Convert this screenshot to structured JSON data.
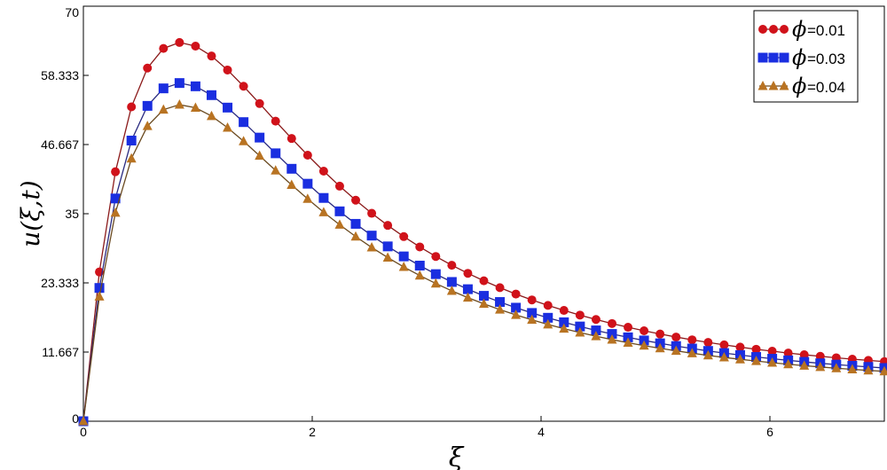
{
  "chart_data": {
    "type": "line",
    "title": "",
    "xlabel": "ξ",
    "ylabel": "u(ξ,t)",
    "xlim": [
      0,
      7
    ],
    "ylim": [
      0,
      70
    ],
    "x_ticks": [
      "0",
      "2",
      "4",
      "6"
    ],
    "y_ticks": [
      "0",
      "11.667",
      "23.333",
      "35",
      "46.667",
      "58.333",
      "70"
    ],
    "grid": false,
    "legend_position": "top-right",
    "legend_symbol": "ϕ",
    "x": [
      0,
      0.14,
      0.28,
      0.42,
      0.56,
      0.7,
      0.84,
      0.98,
      1.12,
      1.26,
      1.4,
      1.54,
      1.68,
      1.82,
      1.96,
      2.1,
      2.24,
      2.38,
      2.52,
      2.66,
      2.8,
      2.94,
      3.08,
      3.22,
      3.36,
      3.5,
      3.64,
      3.78,
      3.92,
      4.06,
      4.2,
      4.34,
      4.48,
      4.62,
      4.76,
      4.9,
      5.04,
      5.18,
      5.32,
      5.46,
      5.6,
      5.74,
      5.88,
      6.02,
      6.16,
      6.3,
      6.44,
      6.58,
      6.72,
      6.86,
      7.0
    ],
    "series": [
      {
        "name": "=0.01",
        "color": "#d0121a",
        "line_color": "#8b1a1a",
        "marker": "circle",
        "values": [
          0.0,
          25.18,
          42.08,
          53.02,
          59.57,
          62.88,
          63.88,
          63.27,
          61.6,
          59.24,
          56.5,
          53.58,
          50.61,
          47.69,
          44.87,
          42.18,
          39.65,
          37.28,
          35.07,
          33.03,
          31.14,
          29.4,
          27.79,
          26.31,
          24.95,
          23.69,
          22.53,
          21.45,
          20.46,
          19.54,
          18.69,
          17.9,
          17.16,
          16.48,
          15.85,
          15.26,
          14.71,
          14.2,
          13.73,
          13.29,
          12.88,
          12.5,
          12.14,
          11.81,
          11.5,
          11.21,
          10.95,
          10.7,
          10.47,
          10.26,
          10.06
        ]
      },
      {
        "name": "=0.03",
        "color": "#1a2ee0",
        "line_color": "#2a2a80",
        "marker": "square",
        "values": [
          0.0,
          22.48,
          37.57,
          47.34,
          53.19,
          56.14,
          57.04,
          56.49,
          55.0,
          52.9,
          50.45,
          47.84,
          45.19,
          42.58,
          40.06,
          37.66,
          35.4,
          33.29,
          31.31,
          29.49,
          27.8,
          26.25,
          24.81,
          23.49,
          22.27,
          21.15,
          20.11,
          19.15,
          18.26,
          17.45,
          16.69,
          15.98,
          15.32,
          14.72,
          14.15,
          13.62,
          13.14,
          12.68,
          12.26,
          11.86,
          11.5,
          11.16,
          10.84,
          10.54,
          10.27,
          10.01,
          9.77,
          9.55,
          9.35,
          9.16,
          8.98
        ]
      },
      {
        "name": "=0.04",
        "color": "#b87322",
        "line_color": "#6a4a20",
        "marker": "triangle",
        "values": [
          0.0,
          21.04,
          35.17,
          44.31,
          49.78,
          52.55,
          53.39,
          52.87,
          51.48,
          49.51,
          47.22,
          44.78,
          42.29,
          39.86,
          37.5,
          35.25,
          33.14,
          31.15,
          29.31,
          27.6,
          26.02,
          24.57,
          23.23,
          21.99,
          20.85,
          19.8,
          18.82,
          17.93,
          17.1,
          16.33,
          15.62,
          14.96,
          14.34,
          13.77,
          13.24,
          12.75,
          12.3,
          11.87,
          11.47,
          11.1,
          10.76,
          10.44,
          10.15,
          9.87,
          9.61,
          9.37,
          9.15,
          8.94,
          8.75,
          8.57,
          8.41
        ]
      }
    ]
  }
}
